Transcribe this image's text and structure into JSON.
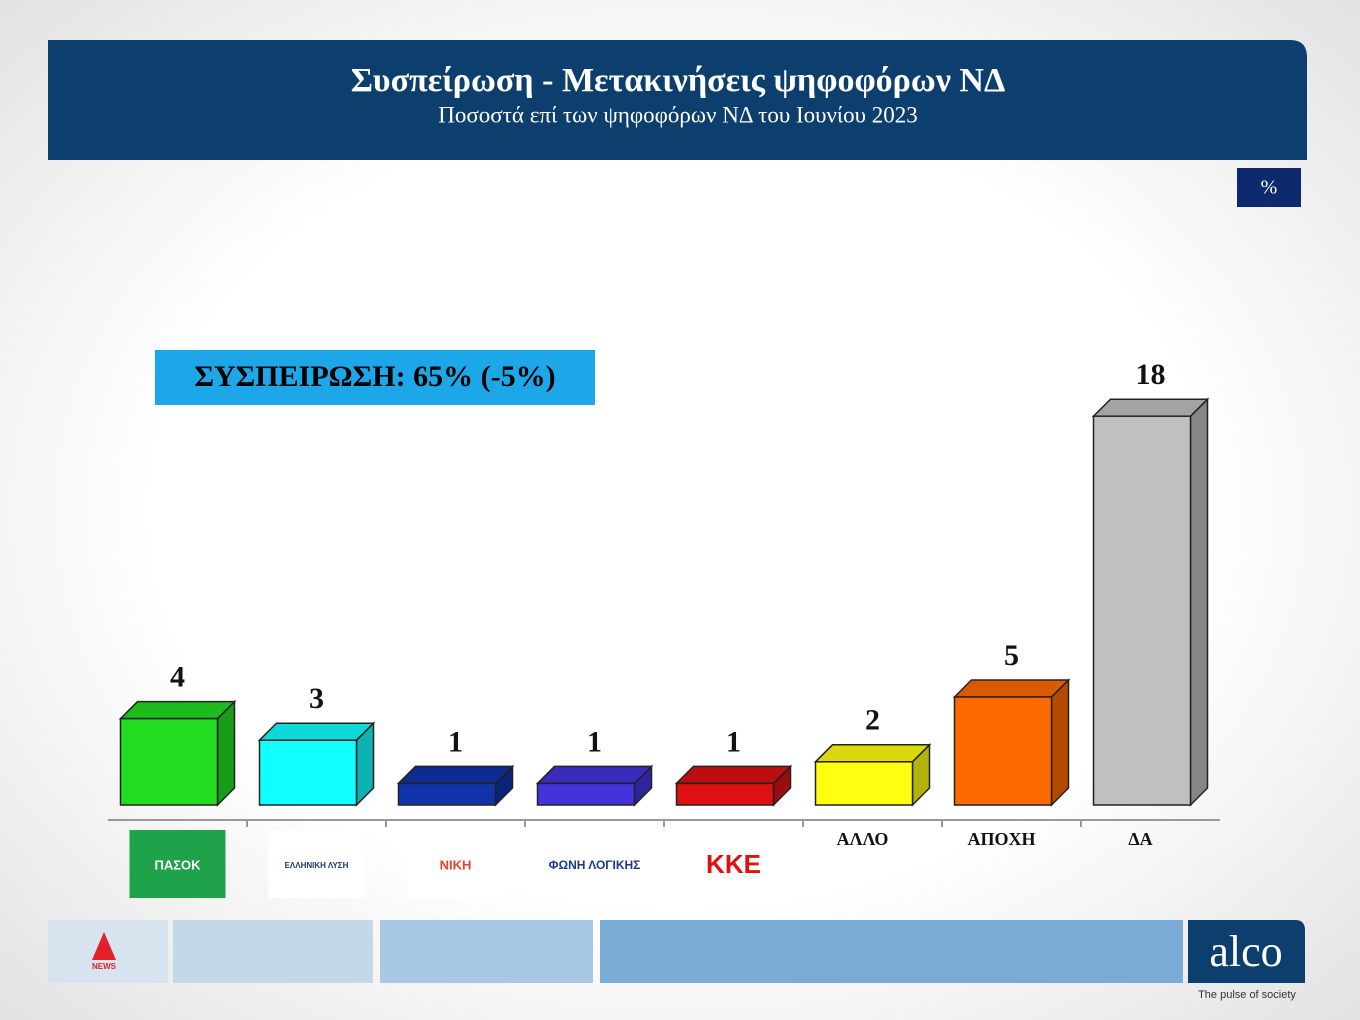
{
  "chart_data": {
    "type": "bar3d",
    "title": "Συσπείρωση - Μετακινήσεις ψηφοφόρων ΝΔ",
    "subtitle": "Ποσοστά επί των ψηφοφόρων ΝΔ  του Ιουνίου 2023",
    "unit": "%",
    "annotation": "ΣΥΣΠΕΙΡΩΣΗ: 65% (-5%)",
    "categories": [
      "ΠΑΣΟΚ",
      "ΕΛΛΗΝΙΚΗ ΛΥΣΗ",
      "ΝΙΚΗ",
      "ΦΩΝΗ ΛΟΓΙΚΗΣ",
      "ΚΚΕ",
      "ΑΛΛΟ",
      "ΑΠΟΧΗ",
      "ΔΑ"
    ],
    "values": [
      4,
      3,
      1,
      1,
      1,
      2,
      5,
      18
    ],
    "colors": [
      "#22dd22",
      "#11ffff",
      "#1133aa",
      "#4433dd",
      "#dd1111",
      "#ffff11",
      "#ff6a00",
      "#c0c0c0"
    ]
  },
  "footer": {
    "channel": "NEWS",
    "brand": "alco",
    "tagline": "The pulse of society"
  }
}
